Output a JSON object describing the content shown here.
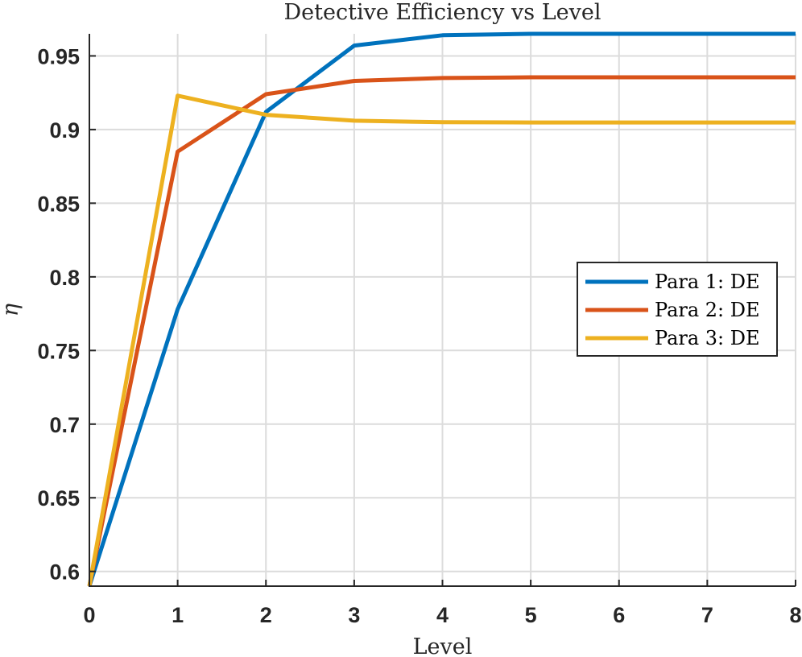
{
  "chart_data": {
    "type": "line",
    "title": "Detective Efficiency vs Level",
    "xlabel": "Level",
    "ylabel": "η",
    "xlim": [
      0,
      8
    ],
    "ylim": [
      0.59,
      0.965
    ],
    "x_ticks": [
      "0",
      "1",
      "2",
      "3",
      "4",
      "5",
      "6",
      "7",
      "8"
    ],
    "y_ticks": [
      "0.6",
      "0.65",
      "0.7",
      "0.75",
      "0.8",
      "0.85",
      "0.9",
      "0.95"
    ],
    "y_tick_values": [
      0.6,
      0.65,
      0.7,
      0.75,
      0.8,
      0.85,
      0.9,
      0.95
    ],
    "grid": true,
    "legend_position": "right",
    "x": [
      0,
      1,
      2,
      3,
      4,
      5,
      6,
      7,
      8
    ],
    "series": [
      {
        "name": "Para 1: DE",
        "color": "#0072BD",
        "values": [
          0.59,
          0.778,
          0.912,
          0.957,
          0.964,
          0.965,
          0.965,
          0.965,
          0.965
        ]
      },
      {
        "name": "Para 2: DE",
        "color": "#D95319",
        "values": [
          0.59,
          0.885,
          0.924,
          0.933,
          0.935,
          0.9355,
          0.9355,
          0.9355,
          0.9355
        ]
      },
      {
        "name": "Para 3: DE",
        "color": "#EDB120",
        "values": [
          0.59,
          0.923,
          0.91,
          0.906,
          0.905,
          0.9048,
          0.9048,
          0.9048,
          0.9048
        ]
      }
    ]
  }
}
